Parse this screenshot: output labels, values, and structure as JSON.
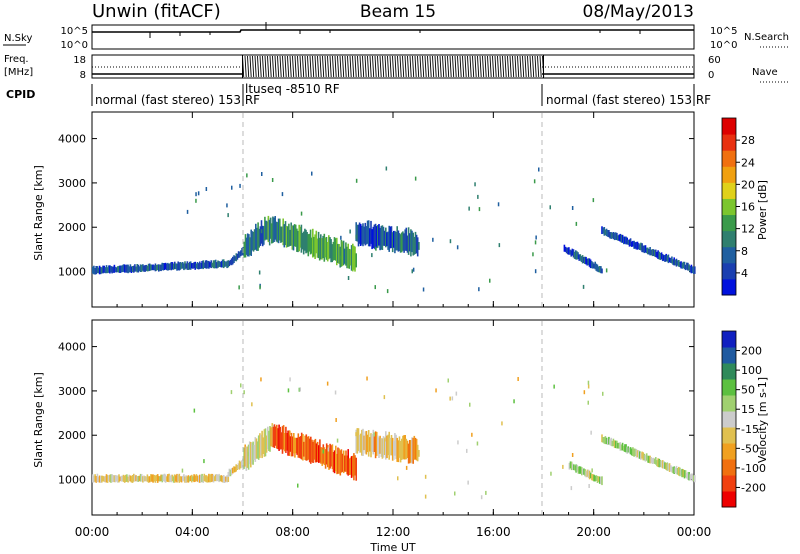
{
  "header": {
    "station": "Unwin (fitACF)",
    "beam": "Beam 15",
    "date": "08/May/2013"
  },
  "top_panels": {
    "nsky_label": "N.Sky",
    "nsky_ticks": [
      "10^5",
      "10^0"
    ],
    "nsearch_label": "N.Search",
    "nsearch_ticks": [
      "10^5",
      "10^0"
    ],
    "freq_label_line1": "Freq.",
    "freq_label_line2": "[MHz]",
    "freq_ticks": [
      "18",
      "8"
    ],
    "nave_label": "Nave",
    "nave_ticks": [
      "60",
      "0"
    ],
    "cpid_label": "CPID",
    "cpid_segments": [
      {
        "text": "normal (fast stereo) 153 RF",
        "from_hour": 0,
        "to_hour": 6
      },
      {
        "text": "ltuseq -8510 RF",
        "from_hour": 6,
        "to_hour": 18
      },
      {
        "text": "normal (fast stereo) 153 RF",
        "from_hour": 18,
        "to_hour": 24
      }
    ]
  },
  "chart_data": [
    {
      "type": "heatmap",
      "panel": "power",
      "ylabel": "Slant Range [km]",
      "yticks": [
        "1000",
        "2000",
        "3000",
        "4000"
      ],
      "ylim": [
        200,
        4600
      ],
      "xlim_hours": [
        0,
        24
      ],
      "colorbar_label": "Power [dB]",
      "colorbar_ticks": [
        "4",
        "8",
        "12",
        "16",
        "20",
        "24",
        "28"
      ],
      "colorbar_range": [
        0,
        32
      ],
      "colors": [
        "#0011dd",
        "#1a3fb0",
        "#1f5fa0",
        "#2f7f6f",
        "#3a9a4a",
        "#7cc62e",
        "#e0d11a",
        "#f0a010",
        "#f07010",
        "#e83010",
        "#dd0000"
      ],
      "echo_bands": [
        {
          "from_hour": 0.0,
          "to_hour": 5.4,
          "range_km_start": 1000,
          "range_km_end": 1150,
          "power_db": 6
        },
        {
          "from_hour": 5.4,
          "to_hour": 7.0,
          "range_km_start": 1150,
          "range_km_end": 1900,
          "power_db": 8
        },
        {
          "from_hour": 7.0,
          "to_hour": 10.5,
          "range_km_start": 1900,
          "range_km_end": 1200,
          "power_db": 12
        },
        {
          "from_hour": 10.5,
          "to_hour": 13.0,
          "range_km_start": 1800,
          "range_km_end": 1550,
          "power_db": 7
        },
        {
          "from_hour": 18.8,
          "to_hour": 20.3,
          "range_km_start": 1500,
          "range_km_end": 1000,
          "power_db": 6
        },
        {
          "from_hour": 20.3,
          "to_hour": 24.0,
          "range_km_start": 1900,
          "range_km_end": 1000,
          "power_db": 6
        }
      ]
    },
    {
      "type": "heatmap",
      "panel": "velocity",
      "ylabel": "Slant Range [km]",
      "yticks": [
        "1000",
        "2000",
        "3000",
        "4000"
      ],
      "ylim": [
        200,
        4600
      ],
      "xlim_hours": [
        0,
        24
      ],
      "xticks": [
        "00:00",
        "04:00",
        "08:00",
        "12:00",
        "16:00",
        "20:00",
        "00:00"
      ],
      "xlabel": "Time UT",
      "colorbar_label": "Velocity [m s-1]",
      "colorbar_ticks": [
        "200",
        "100",
        "50",
        "15",
        "-15",
        "-50",
        "-100",
        "-200"
      ],
      "colorbar_range": [
        -250,
        250
      ],
      "colors": [
        "#ee0000",
        "#f04010",
        "#f07010",
        "#f0a020",
        "#e0c050",
        "#cccccc",
        "#a0d070",
        "#5cc040",
        "#2f8a5a",
        "#1f5aa0",
        "#1020c0"
      ],
      "echo_bands": [
        {
          "from_hour": 0.0,
          "to_hour": 5.4,
          "range_km_start": 1000,
          "range_km_end": 1000,
          "velocity": -30
        },
        {
          "from_hour": 5.4,
          "to_hour": 7.2,
          "range_km_start": 1100,
          "range_km_end": 1900,
          "velocity": -20
        },
        {
          "from_hour": 7.2,
          "to_hour": 10.5,
          "range_km_start": 1900,
          "range_km_end": 1200,
          "velocity": -150
        },
        {
          "from_hour": 10.5,
          "to_hour": 13.0,
          "range_km_start": 1800,
          "range_km_end": 1550,
          "velocity": -60
        },
        {
          "from_hour": 19.0,
          "to_hour": 20.3,
          "range_km_start": 1300,
          "range_km_end": 950,
          "velocity": 25
        },
        {
          "from_hour": 20.3,
          "to_hour": 24.0,
          "range_km_start": 1900,
          "range_km_end": 1000,
          "velocity": 30
        }
      ]
    }
  ]
}
